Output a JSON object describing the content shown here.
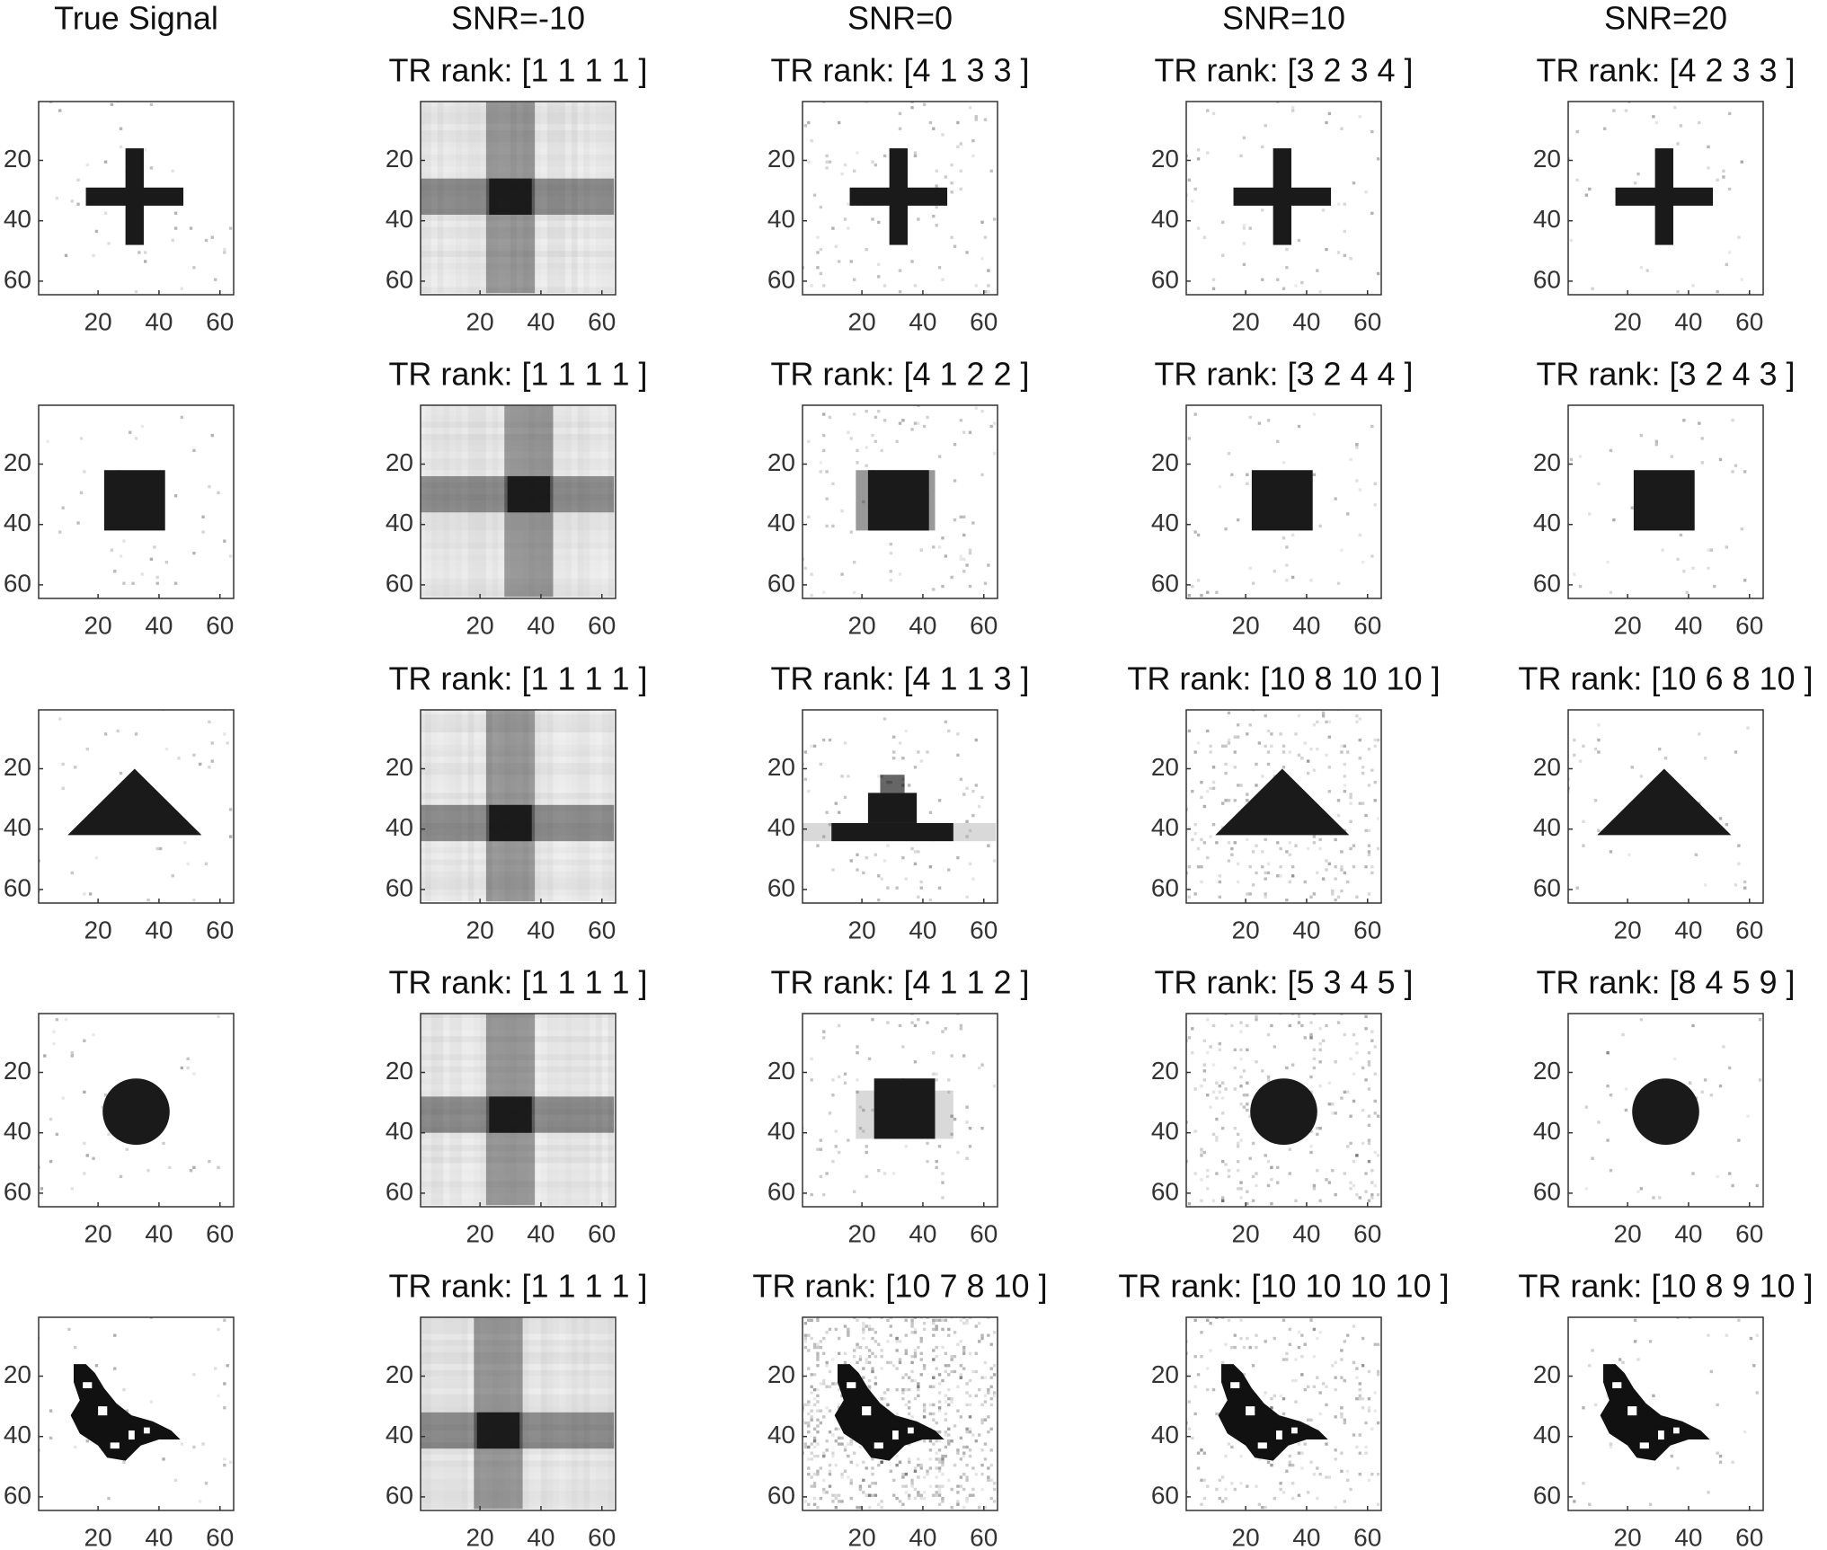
{
  "chart_data": [
    {
      "type": "image",
      "title": "True Signal",
      "xlim": [
        0.5,
        64.5
      ],
      "ylim": [
        0.5,
        64.5
      ],
      "xticks": [
        20,
        40,
        60
      ],
      "yticks": [
        20,
        40,
        60
      ],
      "ydir": "reverse"
    },
    {
      "type": "image",
      "title": "SNR=-10",
      "subtitle": "TR rank: [1 1 1 1 ]",
      "xlim": [
        0.5,
        64.5
      ],
      "ylim": [
        0.5,
        64.5
      ],
      "xticks": [
        20,
        40,
        60
      ],
      "yticks": [
        20,
        40,
        60
      ],
      "ydir": "reverse"
    },
    {
      "type": "image",
      "title": "SNR=0",
      "subtitle": "TR rank: [4 1 3 3 ]",
      "xlim": [
        0.5,
        64.5
      ],
      "ylim": [
        0.5,
        64.5
      ],
      "xticks": [
        20,
        40,
        60
      ],
      "yticks": [
        20,
        40,
        60
      ],
      "ydir": "reverse"
    },
    {
      "type": "image",
      "title": "SNR=10",
      "subtitle": "TR rank: [3 2 3 4 ]",
      "xlim": [
        0.5,
        64.5
      ],
      "ylim": [
        0.5,
        64.5
      ],
      "xticks": [
        20,
        40,
        60
      ],
      "yticks": [
        20,
        40,
        60
      ],
      "ydir": "reverse"
    },
    {
      "type": "image",
      "title": "SNR=20",
      "subtitle": "TR rank: [4 2 3 3 ]",
      "xlim": [
        0.5,
        64.5
      ],
      "ylim": [
        0.5,
        64.5
      ],
      "xticks": [
        20,
        40,
        60
      ],
      "yticks": [
        20,
        40,
        60
      ],
      "ydir": "reverse"
    },
    {
      "type": "image",
      "xlim": [
        0.5,
        64.5
      ],
      "ylim": [
        0.5,
        64.5
      ],
      "xticks": [
        20,
        40,
        60
      ],
      "yticks": [
        20,
        40,
        60
      ],
      "ydir": "reverse"
    },
    {
      "type": "image",
      "subtitle": "TR rank: [1 1 1 1 ]",
      "xlim": [
        0.5,
        64.5
      ],
      "ylim": [
        0.5,
        64.5
      ],
      "xticks": [
        20,
        40,
        60
      ],
      "yticks": [
        20,
        40,
        60
      ],
      "ydir": "reverse"
    },
    {
      "type": "image",
      "subtitle": "TR rank: [4 1 2 2 ]",
      "xlim": [
        0.5,
        64.5
      ],
      "ylim": [
        0.5,
        64.5
      ],
      "xticks": [
        20,
        40,
        60
      ],
      "yticks": [
        20,
        40,
        60
      ],
      "ydir": "reverse"
    },
    {
      "type": "image",
      "subtitle": "TR rank: [3 2 4 4 ]",
      "xlim": [
        0.5,
        64.5
      ],
      "ylim": [
        0.5,
        64.5
      ],
      "xticks": [
        20,
        40,
        60
      ],
      "yticks": [
        20,
        40,
        60
      ],
      "ydir": "reverse"
    },
    {
      "type": "image",
      "subtitle": "TR rank: [3 2 4 3 ]",
      "xlim": [
        0.5,
        64.5
      ],
      "ylim": [
        0.5,
        64.5
      ],
      "xticks": [
        20,
        40,
        60
      ],
      "yticks": [
        20,
        40,
        60
      ],
      "ydir": "reverse"
    },
    {
      "type": "image",
      "xlim": [
        0.5,
        64.5
      ],
      "ylim": [
        0.5,
        64.5
      ],
      "xticks": [
        20,
        40,
        60
      ],
      "yticks": [
        20,
        40,
        60
      ],
      "ydir": "reverse"
    },
    {
      "type": "image",
      "subtitle": "TR rank: [1 1 1 1 ]",
      "xlim": [
        0.5,
        64.5
      ],
      "ylim": [
        0.5,
        64.5
      ],
      "xticks": [
        20,
        40,
        60
      ],
      "yticks": [
        20,
        40,
        60
      ],
      "ydir": "reverse"
    },
    {
      "type": "image",
      "subtitle": "TR rank: [4 1 1 3 ]",
      "xlim": [
        0.5,
        64.5
      ],
      "ylim": [
        0.5,
        64.5
      ],
      "xticks": [
        20,
        40,
        60
      ],
      "yticks": [
        20,
        40,
        60
      ],
      "ydir": "reverse"
    },
    {
      "type": "image",
      "subtitle": "TR rank: [10 8 10 10 ]",
      "xlim": [
        0.5,
        64.5
      ],
      "ylim": [
        0.5,
        64.5
      ],
      "xticks": [
        20,
        40,
        60
      ],
      "yticks": [
        20,
        40,
        60
      ],
      "ydir": "reverse"
    },
    {
      "type": "image",
      "subtitle": "TR rank: [10 6 8 10 ]",
      "xlim": [
        0.5,
        64.5
      ],
      "ylim": [
        0.5,
        64.5
      ],
      "xticks": [
        20,
        40,
        60
      ],
      "yticks": [
        20,
        40,
        60
      ],
      "ydir": "reverse"
    },
    {
      "type": "image",
      "xlim": [
        0.5,
        64.5
      ],
      "ylim": [
        0.5,
        64.5
      ],
      "xticks": [
        20,
        40,
        60
      ],
      "yticks": [
        20,
        40,
        60
      ],
      "ydir": "reverse"
    },
    {
      "type": "image",
      "subtitle": "TR rank: [1 1 1 1 ]",
      "xlim": [
        0.5,
        64.5
      ],
      "ylim": [
        0.5,
        64.5
      ],
      "xticks": [
        20,
        40,
        60
      ],
      "yticks": [
        20,
        40,
        60
      ],
      "ydir": "reverse"
    },
    {
      "type": "image",
      "subtitle": "TR rank: [4 1 1 2 ]",
      "xlim": [
        0.5,
        64.5
      ],
      "ylim": [
        0.5,
        64.5
      ],
      "xticks": [
        20,
        40,
        60
      ],
      "yticks": [
        20,
        40,
        60
      ],
      "ydir": "reverse"
    },
    {
      "type": "image",
      "subtitle": "TR rank: [5 3 4 5 ]",
      "xlim": [
        0.5,
        64.5
      ],
      "ylim": [
        0.5,
        64.5
      ],
      "xticks": [
        20,
        40,
        60
      ],
      "yticks": [
        20,
        40,
        60
      ],
      "ydir": "reverse"
    },
    {
      "type": "image",
      "subtitle": "TR rank: [8 4 5 9 ]",
      "xlim": [
        0.5,
        64.5
      ],
      "ylim": [
        0.5,
        64.5
      ],
      "xticks": [
        20,
        40,
        60
      ],
      "yticks": [
        20,
        40,
        60
      ],
      "ydir": "reverse"
    },
    {
      "type": "image",
      "xlim": [
        0.5,
        64.5
      ],
      "ylim": [
        0.5,
        64.5
      ],
      "xticks": [
        20,
        40,
        60
      ],
      "yticks": [
        20,
        40,
        60
      ],
      "ydir": "reverse"
    },
    {
      "type": "image",
      "subtitle": "TR rank: [1 1 1 1 ]",
      "xlim": [
        0.5,
        64.5
      ],
      "ylim": [
        0.5,
        64.5
      ],
      "xticks": [
        20,
        40,
        60
      ],
      "yticks": [
        20,
        40,
        60
      ],
      "ydir": "reverse"
    },
    {
      "type": "image",
      "subtitle": "TR rank: [10 7 8 10 ]",
      "xlim": [
        0.5,
        64.5
      ],
      "ylim": [
        0.5,
        64.5
      ],
      "xticks": [
        20,
        40,
        60
      ],
      "yticks": [
        20,
        40,
        60
      ],
      "ydir": "reverse"
    },
    {
      "type": "image",
      "subtitle": "TR rank: [10 10 10 10 ]",
      "xlim": [
        0.5,
        64.5
      ],
      "ylim": [
        0.5,
        64.5
      ],
      "xticks": [
        20,
        40,
        60
      ],
      "yticks": [
        20,
        40,
        60
      ],
      "ydir": "reverse"
    },
    {
      "type": "image",
      "subtitle": "TR rank: [10 8 9 10 ]",
      "xlim": [
        0.5,
        64.5
      ],
      "ylim": [
        0.5,
        64.5
      ],
      "xticks": [
        20,
        40,
        60
      ],
      "yticks": [
        20,
        40,
        60
      ],
      "ydir": "reverse"
    }
  ]
}
